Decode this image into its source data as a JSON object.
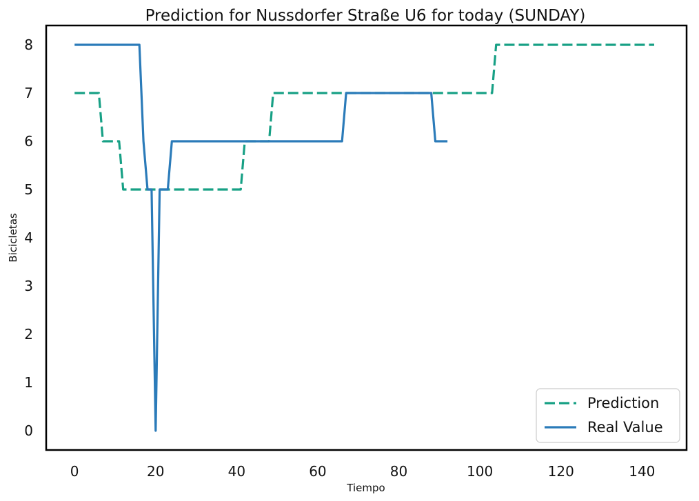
{
  "chart_data": {
    "type": "line",
    "title": "Prediction for Nussdorfer Straße U6 for today (SUNDAY)",
    "xlabel": "Tiempo",
    "ylabel": "Bicicletas",
    "xlim": [
      -7,
      151
    ],
    "ylim": [
      -0.4,
      8.4
    ],
    "xticks": [
      0,
      20,
      40,
      60,
      80,
      100,
      120,
      140
    ],
    "yticks": [
      0,
      1,
      2,
      3,
      4,
      5,
      6,
      7,
      8
    ],
    "grid": false,
    "legend_position": "bottom-right",
    "series": [
      {
        "name": "Prediction",
        "color": "#17a085",
        "style": "dashed",
        "points": [
          [
            0,
            7
          ],
          [
            6,
            7
          ],
          [
            7,
            6
          ],
          [
            11,
            6
          ],
          [
            12,
            5
          ],
          [
            41,
            5
          ],
          [
            42,
            6
          ],
          [
            48,
            6
          ],
          [
            49,
            7
          ],
          [
            103,
            7
          ],
          [
            104,
            8
          ],
          [
            143,
            8
          ]
        ]
      },
      {
        "name": "Real Value",
        "color": "#2b7bb9",
        "style": "solid",
        "points": [
          [
            0,
            8
          ],
          [
            16,
            8
          ],
          [
            17,
            6
          ],
          [
            18,
            5
          ],
          [
            19,
            5
          ],
          [
            20,
            0
          ],
          [
            21,
            5
          ],
          [
            23,
            5
          ],
          [
            24,
            6
          ],
          [
            66,
            6
          ],
          [
            67,
            7
          ],
          [
            88,
            7
          ],
          [
            89,
            6
          ],
          [
            92,
            6
          ]
        ]
      }
    ]
  }
}
